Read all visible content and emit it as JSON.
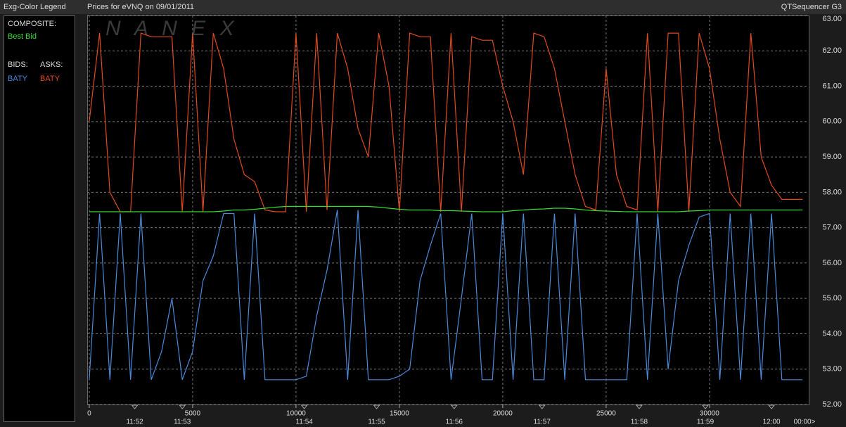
{
  "chart_data": {
    "type": "line",
    "header_left": "Exg-Color Legend",
    "title": "Prices for  eVNQ  on  09/01/2011",
    "header_right": "QTSequencer G3",
    "watermark": "N A N E X",
    "legend_headings": {
      "composite": "COMPOSITE:",
      "bids": "BIDS:",
      "asks": "ASKS:"
    },
    "x": [
      0,
      500,
      1000,
      1500,
      2000,
      2500,
      3000,
      3500,
      4000,
      4500,
      5000,
      5500,
      6000,
      6500,
      7000,
      7500,
      8000,
      8500,
      9000,
      9500,
      10000,
      10500,
      11000,
      11500,
      12000,
      12500,
      13000,
      13500,
      14000,
      14500,
      15000,
      15500,
      16000,
      16500,
      17000,
      17500,
      18000,
      18500,
      19000,
      19500,
      20000,
      20500,
      21000,
      21500,
      22000,
      22500,
      23000,
      23500,
      24000,
      24500,
      25000,
      25500,
      26000,
      26500,
      27000,
      27500,
      28000,
      28500,
      29000,
      29500,
      30000,
      30500,
      31000,
      31500,
      32000,
      32500,
      33000,
      33500,
      34000,
      34500
    ],
    "series": [
      {
        "name": "Best Bid",
        "color": "#33dd33",
        "values": [
          57.45,
          57.45,
          57.45,
          57.45,
          57.45,
          57.45,
          57.45,
          57.45,
          57.45,
          57.45,
          57.45,
          57.45,
          57.45,
          57.47,
          57.5,
          57.5,
          57.52,
          57.55,
          57.58,
          57.6,
          57.6,
          57.6,
          57.6,
          57.6,
          57.6,
          57.6,
          57.6,
          57.6,
          57.58,
          57.55,
          57.52,
          57.5,
          57.5,
          57.5,
          57.48,
          57.48,
          57.47,
          57.46,
          57.45,
          57.45,
          57.45,
          57.48,
          57.5,
          57.52,
          57.53,
          57.55,
          57.55,
          57.53,
          57.5,
          57.48,
          57.47,
          57.46,
          57.45,
          57.45,
          57.45,
          57.45,
          57.45,
          57.45,
          57.47,
          57.48,
          57.5,
          57.5,
          57.5,
          57.5,
          57.5,
          57.5,
          57.5,
          57.5,
          57.5,
          57.5
        ]
      },
      {
        "name": "BATY",
        "color": "#4a8ad8",
        "values": [
          52.7,
          57.4,
          52.7,
          57.4,
          52.7,
          57.4,
          52.7,
          53.5,
          55.0,
          52.7,
          53.5,
          55.5,
          56.2,
          57.4,
          57.4,
          52.7,
          57.4,
          52.7,
          52.7,
          52.7,
          52.7,
          52.8,
          54.5,
          55.8,
          57.5,
          52.7,
          57.5,
          52.7,
          52.7,
          52.7,
          52.8,
          53.0,
          55.5,
          56.5,
          57.4,
          52.7,
          55.0,
          57.4,
          52.7,
          52.7,
          57.4,
          52.7,
          57.4,
          52.7,
          52.7,
          57.4,
          52.7,
          57.4,
          52.7,
          52.7,
          52.7,
          52.7,
          52.7,
          57.4,
          52.7,
          57.4,
          53.0,
          55.5,
          56.5,
          57.3,
          57.4,
          52.7,
          57.4,
          52.7,
          57.4,
          52.7,
          57.4,
          52.7,
          52.7,
          52.7
        ]
      },
      {
        "name": "BATY",
        "color": "#e04a1c",
        "values": [
          60.0,
          62.5,
          58.0,
          57.45,
          57.45,
          62.5,
          62.4,
          62.4,
          62.4,
          57.45,
          62.5,
          57.45,
          62.5,
          61.5,
          59.5,
          58.5,
          58.3,
          57.5,
          57.45,
          57.45,
          62.5,
          57.45,
          62.5,
          57.5,
          62.5,
          61.5,
          59.8,
          59.0,
          62.5,
          61.0,
          57.45,
          62.5,
          62.4,
          62.4,
          57.45,
          62.5,
          57.45,
          62.4,
          62.3,
          62.3,
          61.0,
          60.0,
          58.5,
          62.5,
          62.4,
          61.5,
          60.0,
          58.5,
          57.6,
          57.5,
          61.5,
          58.5,
          57.6,
          57.5,
          62.5,
          57.45,
          62.5,
          62.5,
          57.45,
          62.5,
          61.5,
          59.5,
          58.0,
          57.6,
          62.5,
          59.0,
          58.2,
          57.8,
          57.8,
          57.8
        ]
      }
    ],
    "xlim": [
      -100,
      34800
    ],
    "xticks": [
      0,
      5000,
      10000,
      15000,
      20000,
      25000,
      30000
    ],
    "time_ticks": [
      {
        "value": 2200,
        "label": "11:52"
      },
      {
        "value": 4500,
        "label": "11:53"
      },
      {
        "value": 10400,
        "label": "11:54"
      },
      {
        "value": 13900,
        "label": "11:55"
      },
      {
        "value": 17650,
        "label": "11:56"
      },
      {
        "value": 21900,
        "label": "11:57"
      },
      {
        "value": 26600,
        "label": "11:58"
      },
      {
        "value": 29800,
        "label": "11:59"
      },
      {
        "value": 33000,
        "label": "12:00"
      }
    ],
    "end_label": "00:00>",
    "ylim": [
      52,
      63
    ],
    "yticks": [
      {
        "value": 52,
        "label": "52.00"
      },
      {
        "value": 53,
        "label": "53.00"
      },
      {
        "value": 54,
        "label": "54.00"
      },
      {
        "value": 55,
        "label": "55.00"
      },
      {
        "value": 56,
        "label": "56.00"
      },
      {
        "value": 57,
        "label": "57.00"
      },
      {
        "value": 58,
        "label": "58.00"
      },
      {
        "value": 59,
        "label": "59.00"
      },
      {
        "value": 60,
        "label": "60.00"
      },
      {
        "value": 61,
        "label": "61.00"
      },
      {
        "value": 62,
        "label": "62.00"
      },
      {
        "value": 63,
        "label": "63.00"
      }
    ],
    "grid": true
  }
}
